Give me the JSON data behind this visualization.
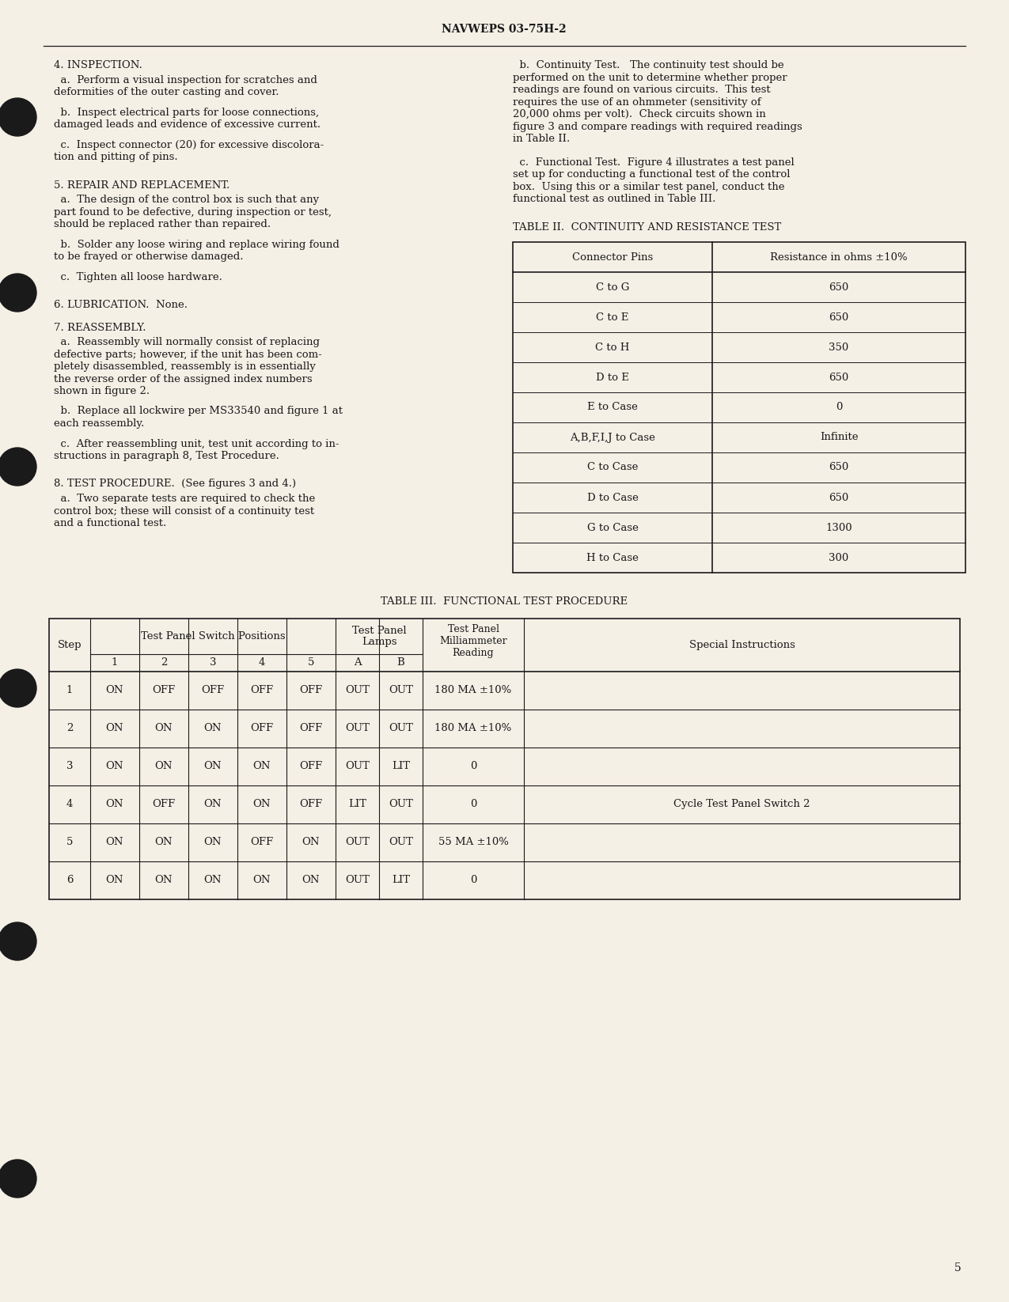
{
  "bg_color": "#f5f0e6",
  "text_color": "#1a1a1a",
  "header": "NAVWEPS 03-75H-2",
  "page_number": "5",
  "left_column": {
    "sections": [
      {
        "heading": "4. INSPECTION.",
        "paragraphs": [
          "  a.  Perform a visual inspection for scratches and\ndeformities of the outer casting and cover.",
          "  b.  Inspect electrical parts for loose connections,\ndamaged leads and evidence of excessive current.",
          "  c.  Inspect connector (20) for excessive discolora-\ntion and pitting of pins."
        ]
      },
      {
        "heading": "5. REPAIR AND REPLACEMENT.",
        "paragraphs": [
          "  a.  The design of the control box is such that any\npart found to be defective, during inspection or test,\nshould be replaced rather than repaired.",
          "  b.  Solder any loose wiring and replace wiring found\nto be frayed or otherwise damaged.",
          "  c.  Tighten all loose hardware."
        ]
      },
      {
        "heading": "6. LUBRICATION.  None.",
        "paragraphs": []
      },
      {
        "heading": "7. REASSEMBLY.",
        "paragraphs": [
          "  a.  Reassembly will normally consist of replacing\ndefective parts; however, if the unit has been com-\npletely disassembled, reassembly is in essentially\nthe reverse order of the assigned index numbers\nshown in figure 2.",
          "  b.  Replace all lockwire per MS33540 and figure 1 at\neach reassembly.",
          "  c.  After reassembling unit, test unit according to in-\nstructions in paragraph 8, Test Procedure."
        ]
      },
      {
        "heading": "8. TEST PROCEDURE.  (See figures 3 and 4.)",
        "paragraphs": [
          "  a.  Two separate tests are required to check the\ncontrol box; these will consist of a continuity test\nand a functional test."
        ]
      }
    ]
  },
  "right_column": {
    "paragraphs": [
      "  b.  Continuity Test.   The continuity test should be\nperformed on the unit to determine whether proper\nreadings are found on various circuits.  This test\nrequires the use of an ohmmeter (sensitivity of\n20,000 ohms per volt).  Check circuits shown in\nfigure 3 and compare readings with required readings\nin Table II.",
      "  c.  Functional Test.  Figure 4 illustrates a test panel\nset up for conducting a functional test of the control\nbox.  Using this or a similar test panel, conduct the\nfunctional test as outlined in Table III."
    ],
    "table2_title": "TABLE II.  CONTINUITY AND RESISTANCE TEST",
    "table2_headers": [
      "Connector Pins",
      "Resistance in ohms ±10%"
    ],
    "table2_rows": [
      [
        "C to G",
        "650"
      ],
      [
        "C to E",
        "650"
      ],
      [
        "C to H",
        "350"
      ],
      [
        "D to E",
        "650"
      ],
      [
        "E to Case",
        "0"
      ],
      [
        "A,B,F,I,J to Case",
        "Infinite"
      ],
      [
        "C to Case",
        "650"
      ],
      [
        "D to Case",
        "650"
      ],
      [
        "G to Case",
        "1300"
      ],
      [
        "H to Case",
        "300"
      ]
    ]
  },
  "table3": {
    "title": "TABLE III.  FUNCTIONAL TEST PROCEDURE",
    "rows": [
      [
        "1",
        "ON",
        "OFF",
        "OFF",
        "OFF",
        "OFF",
        "OUT",
        "OUT",
        "180 MA ±10%",
        ""
      ],
      [
        "2",
        "ON",
        "ON",
        "ON",
        "OFF",
        "OFF",
        "OUT",
        "OUT",
        "180 MA ±10%",
        ""
      ],
      [
        "3",
        "ON",
        "ON",
        "ON",
        "ON",
        "OFF",
        "OUT",
        "LIT",
        "0",
        ""
      ],
      [
        "4",
        "ON",
        "OFF",
        "ON",
        "ON",
        "OFF",
        "LIT",
        "OUT",
        "0",
        "Cycle Test Panel Switch 2"
      ],
      [
        "5",
        "ON",
        "ON",
        "ON",
        "OFF",
        "ON",
        "OUT",
        "OUT",
        "55 MA ±10%",
        ""
      ],
      [
        "6",
        "ON",
        "ON",
        "ON",
        "ON",
        "ON",
        "OUT",
        "LIT",
        "0",
        ""
      ]
    ]
  },
  "circles_y": [
    148,
    370,
    590,
    870,
    1190,
    1490
  ]
}
